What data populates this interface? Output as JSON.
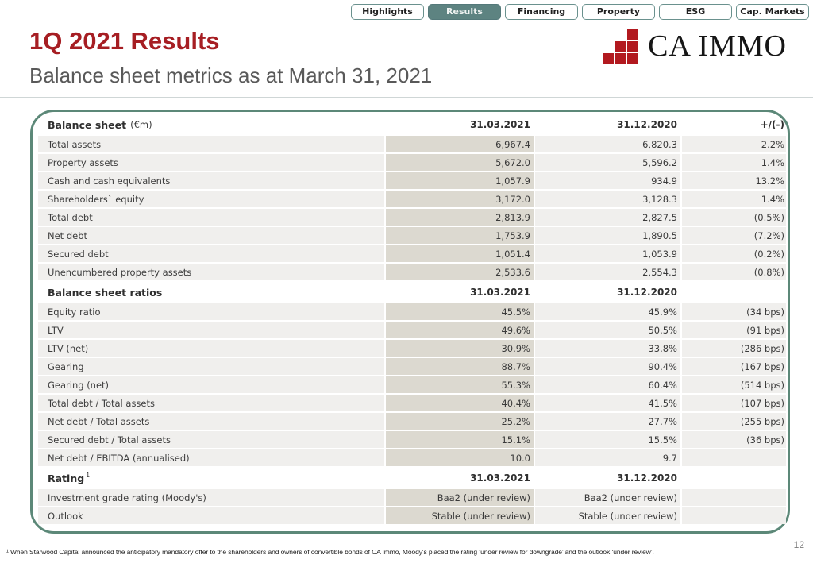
{
  "tabs": [
    {
      "label": "Highlights",
      "active": false
    },
    {
      "label": "Results",
      "active": true
    },
    {
      "label": "Financing",
      "active": false
    },
    {
      "label": "Property",
      "active": false
    },
    {
      "label": "ESG",
      "active": false
    },
    {
      "label": "Cap. Markets",
      "active": false
    }
  ],
  "header": {
    "title": "1Q 2021 Results",
    "subtitle": "Balance sheet metrics as at March 31, 2021",
    "logo_text": "CA IMMO"
  },
  "table": {
    "sections": [
      {
        "header": {
          "label": "Balance sheet",
          "suffix": "(€m)",
          "sup": "",
          "col1": "31.03.2021",
          "col2": "31.12.2020",
          "col3": "+/(-)"
        },
        "rows": [
          {
            "label": "Total assets",
            "col1": "6,967.4",
            "col2": "6,820.3",
            "col3": "2.2%"
          },
          {
            "label": "Property assets",
            "col1": "5,672.0",
            "col2": "5,596.2",
            "col3": "1.4%"
          },
          {
            "label": "Cash and cash equivalents",
            "col1": "1,057.9",
            "col2": "934.9",
            "col3": "13.2%"
          },
          {
            "label": "Shareholders` equity",
            "col1": "3,172.0",
            "col2": "3,128.3",
            "col3": "1.4%"
          },
          {
            "label": "Total debt",
            "col1": "2,813.9",
            "col2": "2,827.5",
            "col3": "(0.5%)"
          },
          {
            "label": "Net debt",
            "col1": "1,753.9",
            "col2": "1,890.5",
            "col3": "(7.2%)"
          },
          {
            "label": "Secured debt",
            "col1": "1,051.4",
            "col2": "1,053.9",
            "col3": "(0.2%)"
          },
          {
            "label": "Unencumbered property assets",
            "col1": "2,533.6",
            "col2": "2,554.3",
            "col3": "(0.8%)"
          }
        ]
      },
      {
        "header": {
          "label": "Balance sheet ratios",
          "suffix": "",
          "sup": "",
          "col1": "31.03.2021",
          "col2": "31.12.2020",
          "col3": ""
        },
        "rows": [
          {
            "label": "Equity ratio",
            "col1": "45.5%",
            "col2": "45.9%",
            "col3": "(34 bps)"
          },
          {
            "label": "LTV",
            "col1": "49.6%",
            "col2": "50.5%",
            "col3": "(91 bps)"
          },
          {
            "label": "LTV (net)",
            "col1": "30.9%",
            "col2": "33.8%",
            "col3": "(286 bps)"
          },
          {
            "label": "Gearing",
            "col1": "88.7%",
            "col2": "90.4%",
            "col3": "(167 bps)"
          },
          {
            "label": "Gearing (net)",
            "col1": "55.3%",
            "col2": "60.4%",
            "col3": "(514 bps)"
          },
          {
            "label": "Total debt / Total assets",
            "col1": "40.4%",
            "col2": "41.5%",
            "col3": "(107 bps)"
          },
          {
            "label": "Net debt / Total assets",
            "col1": "25.2%",
            "col2": "27.7%",
            "col3": "(255 bps)"
          },
          {
            "label": "Secured debt / Total assets",
            "col1": "15.1%",
            "col2": "15.5%",
            "col3": "(36 bps)"
          },
          {
            "label": "Net debt / EBITDA (annualised)",
            "col1": "10.0",
            "col2": "9.7",
            "col3": ""
          }
        ]
      },
      {
        "header": {
          "label": "Rating",
          "suffix": "",
          "sup": "1",
          "col1": "31.03.2021",
          "col2": "31.12.2020",
          "col3": ""
        },
        "rows": [
          {
            "label": "Investment grade rating (Moody's)",
            "col1": "Baa2 (under review)",
            "col2": "Baa2 (under review)",
            "col3": ""
          },
          {
            "label": "Outlook",
            "col1": "Stable (under review)",
            "col2": "Stable (under review)",
            "col3": ""
          }
        ]
      }
    ]
  },
  "footnote": "¹ When Starwood Capital announced the anticipatory mandatory offer to the shareholders and owners of convertible bonds of CA Immo, Moody's placed the rating ‘under review for downgrade’ and the outlook ‘under review’.",
  "page_number": "12",
  "colors": {
    "title_red": "#a61e23",
    "logo_red": "#b2191f",
    "tab_teal": "#5d8381",
    "panel_border_green": "#5c8878",
    "row_bg": "#f0efed",
    "current_col_bg": "#dcd9d0"
  }
}
